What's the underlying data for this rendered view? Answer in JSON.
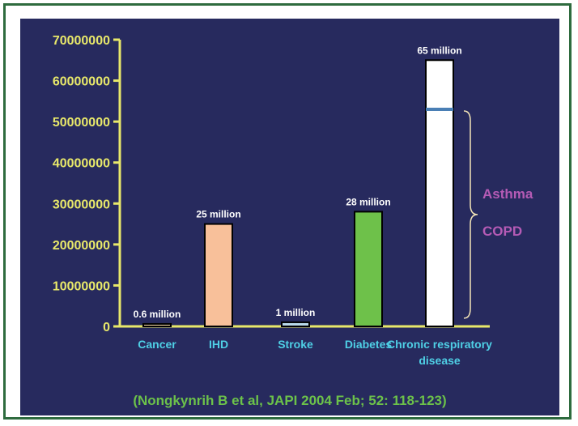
{
  "chart_data": {
    "type": "bar",
    "categories": [
      "Cancer",
      "IHD",
      "Stroke",
      "Diabetes",
      "Chronic respiratory disease"
    ],
    "category_lines": [
      [
        "Cancer"
      ],
      [
        "IHD"
      ],
      [
        "Stroke"
      ],
      [
        "Diabetes"
      ],
      [
        "Chronic respiratory",
        "disease"
      ]
    ],
    "values": [
      600000,
      25000000,
      1000000,
      28000000,
      65000000
    ],
    "data_labels": [
      "0.6 million",
      "25 million",
      "1 million",
      "28 million",
      "65 million"
    ],
    "bar_colors": [
      "#f5d9a8",
      "#f8c09a",
      "#b9d9ea",
      "#6ec14a",
      "#ffffff"
    ],
    "yticks": [
      0,
      10000000,
      20000000,
      30000000,
      40000000,
      50000000,
      60000000,
      70000000
    ],
    "ytick_labels": [
      "0",
      "10000000",
      "20000000",
      "30000000",
      "40000000",
      "50000000",
      "60000000",
      "70000000"
    ],
    "ylim": [
      0,
      70000000
    ],
    "title": "",
    "xlabel": "",
    "ylabel": "",
    "grid": false,
    "marker_value": 53000000,
    "bracket_range": [
      2000000,
      53000000
    ],
    "bracket_labels": [
      "Asthma",
      "COPD"
    ],
    "colors": {
      "axis": "#e8e86a",
      "tick_text": "#e8e86a",
      "category_text": "#4fd0e6",
      "data_label_text": "#ffffff",
      "bracket": "#f5e6b8",
      "bracket_text": "#b55bb5",
      "marker": "#4a7fb5"
    }
  },
  "citation": "(Nongkynrih B et al, JAPI 2004 Feb; 52: 118-123)"
}
